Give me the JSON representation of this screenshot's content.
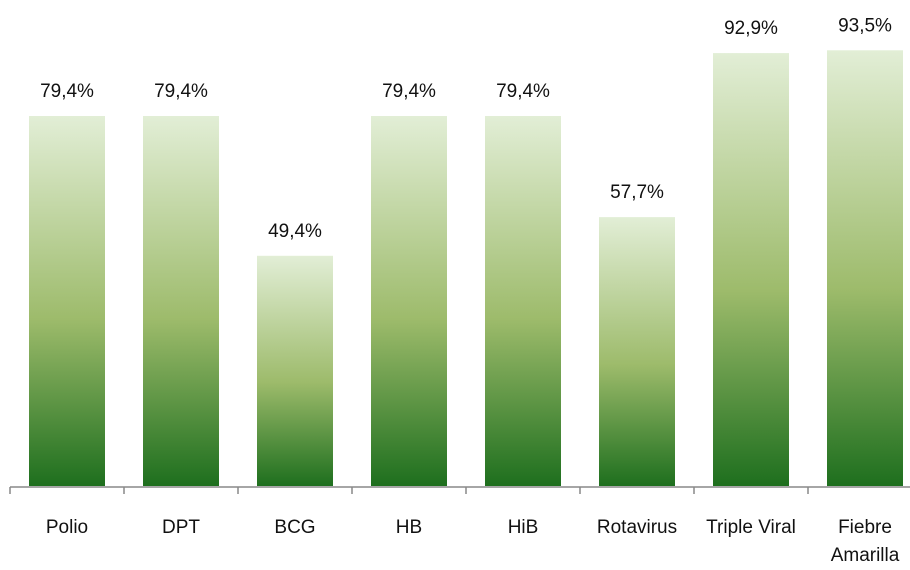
{
  "chart_data": {
    "type": "bar",
    "categories": [
      "Polio",
      "DPT",
      "BCG",
      "HB",
      "HiB",
      "Rotavirus",
      "Triple Viral",
      "Fiebre Amarilla"
    ],
    "values": [
      79.4,
      79.4,
      49.4,
      79.4,
      79.4,
      57.7,
      92.9,
      93.5
    ],
    "value_labels": [
      "79,4%",
      "79,4%",
      "49,4%",
      "79,4%",
      "79,4%",
      "57,7%",
      "92,9%",
      "93,5%"
    ],
    "color": "#1e6f1e"
  }
}
